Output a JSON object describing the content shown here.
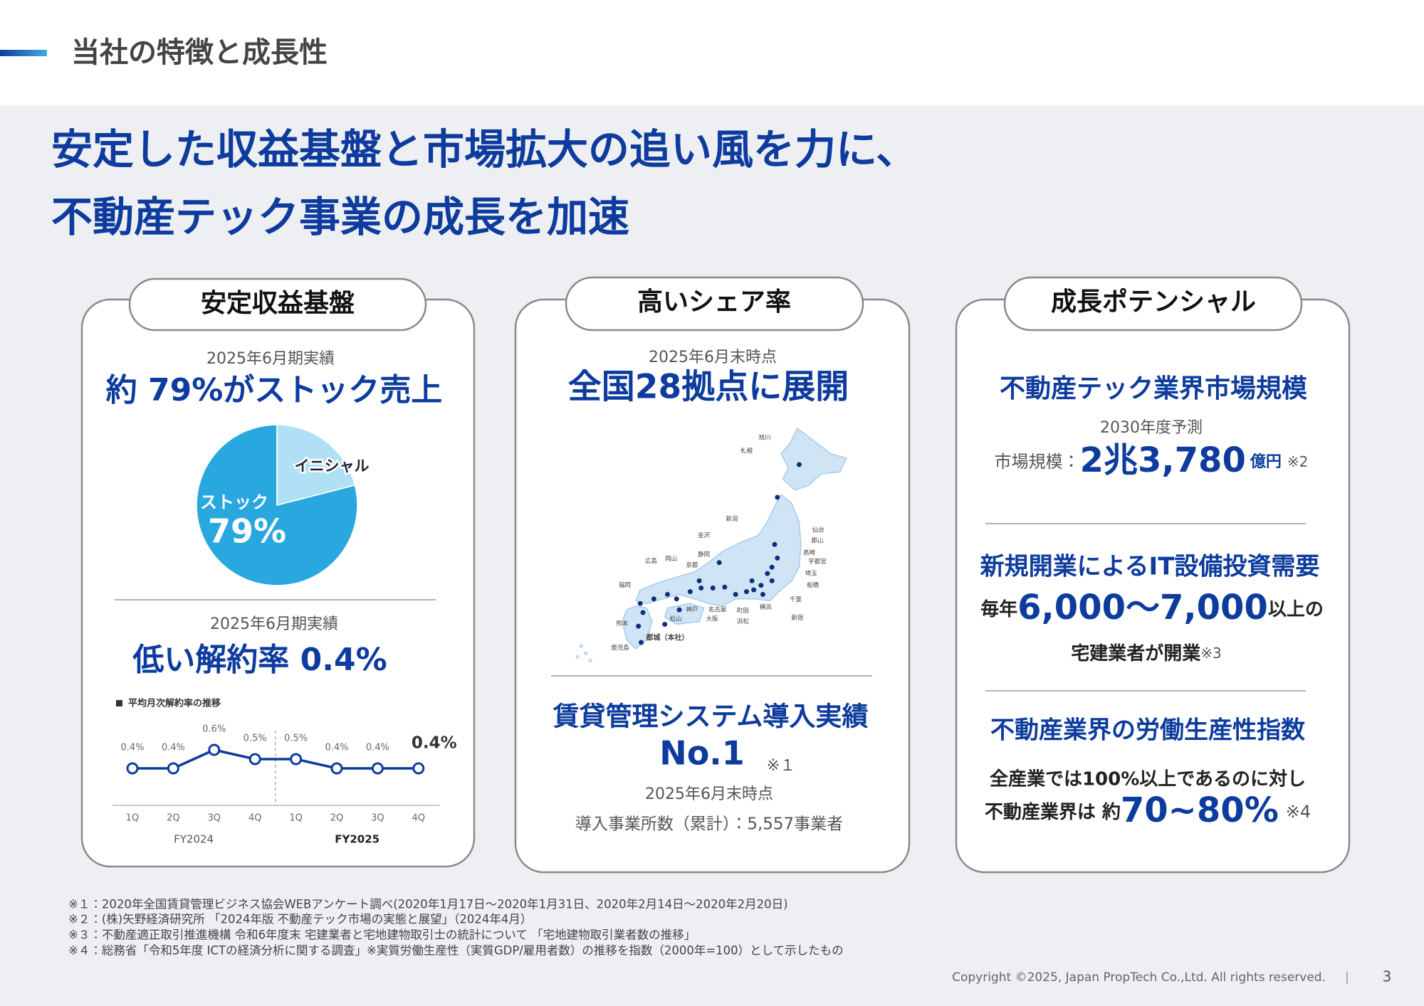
{
  "header": {
    "title": "当社の特徴と成長性"
  },
  "headline": [
    "安定した収益基盤と市場拡大の追い風を力に、",
    "不動産テック事業の成長を加速"
  ],
  "cards": [
    {
      "tab": "安定収益基盤",
      "period_1": "2025年6月期実績",
      "heading_1": "約 79%がストック売上",
      "period_2": "2025年6月期実績",
      "heading_2": "低い解約率 0.4%"
    },
    {
      "tab": "高いシェア率",
      "period_1": "2025年6月末時点",
      "heading_1": "全国28拠点に展開",
      "heading_2": "賃貸管理システム導入実績",
      "rank": "No.1",
      "rank_note": "※１",
      "period_2": "2025年6月末時点",
      "detail": "導入事業所数（累計）：5,557事業者",
      "map_labels": [
        "旭川",
        "札幌",
        "新潟",
        "仙台",
        "郡山",
        "高崎",
        "宇都宮",
        "埼玉",
        "船橋",
        "千葉",
        "新宿",
        "横浜",
        "町田",
        "浜松",
        "名古屋",
        "大阪",
        "神戸",
        "松山",
        "静岡",
        "金沢",
        "京都",
        "岡山",
        "広島",
        "福岡",
        "熊本",
        "鹿児島",
        "都城（本社）"
      ]
    },
    {
      "tab": "成長ポテンシャル",
      "section_1": {
        "heading": "不動産テック業界市場規模",
        "period": "2030年度予測",
        "label": "市場規模：",
        "value": "2兆3,780",
        "unit": "億円",
        "note": "※2"
      },
      "section_2": {
        "heading": "新規開業によるIT設備投資需要",
        "prefix": "毎年",
        "value": "6,000〜7,000",
        "suffix": "以上の",
        "line_2": "宅建業者が開業",
        "note": "※3"
      },
      "section_3": {
        "heading": "不動産業界の労働生産性指数",
        "line_1": "全産業では100%以上であるのに対し",
        "prefix": "不動産業界は 約",
        "value": "70~80%",
        "note": "※4"
      }
    }
  ],
  "chart_data": [
    {
      "type": "pie",
      "categories": [
        "ストック",
        "イニシャル"
      ],
      "values": [
        79,
        21
      ],
      "value_labels": [
        "79%",
        null
      ],
      "colors": [
        "#29a8e0",
        "#b0e0f6"
      ]
    },
    {
      "type": "line",
      "title": "平均月次解約率の推移",
      "categories": [
        "1Q",
        "2Q",
        "3Q",
        "4Q",
        "1Q",
        "2Q",
        "3Q",
        "4Q"
      ],
      "groups": [
        "FY2024",
        "FY2025"
      ],
      "values": [
        0.4,
        0.4,
        0.6,
        0.5,
        0.5,
        0.4,
        0.4,
        0.4
      ],
      "value_labels": [
        "0.4%",
        "0.4%",
        "0.6%",
        "0.5%",
        "0.5%",
        "0.4%",
        "0.4%",
        "0.4%"
      ],
      "color": "#0d3c9e",
      "ylim": [
        0,
        0.6
      ]
    }
  ],
  "footnotes": [
    "※１：2020年全国賃貸管理ビジネス協会WEBアンケート調べ(2020年1月17日〜2020年1月31日、2020年2月14日〜2020年2月20日)",
    "※２：(株)矢野経済研究所 「2024年版 不動産テック市場の実態と展望」（2024年4月）",
    "※３：不動産適正取引推進機構 令和6年度末 宅建業者と宅地建物取引士の統計について 「宅地建物取引業者数の推移」",
    "※４：総務省「令和5年度 ICTの経済分析に関する調査」※実質労働生産性（実質GDP/雇用者数）の推移を指数（2000年=100）として示したもの"
  ],
  "footer": {
    "copyright": "Copyright ©2025, Japan PropTech Co.,Ltd. All rights reserved.",
    "separator": "|",
    "page": "3"
  }
}
